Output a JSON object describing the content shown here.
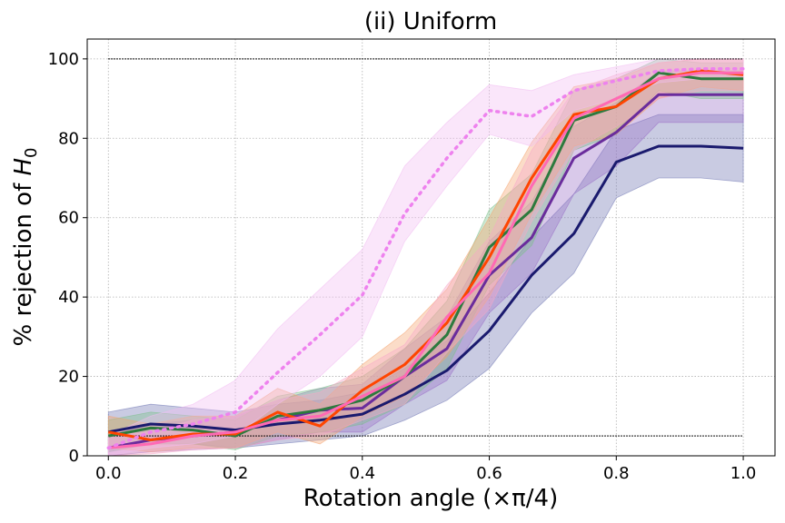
{
  "chart_data": {
    "type": "line",
    "title": "(ii) Uniform",
    "xlabel": "Rotation angle (×π/4)",
    "ylabel_prefix": "% rejection of ",
    "ylabel_symbol": "H",
    "ylabel_subscript": "0",
    "xlim": [
      -0.0333,
      1.05
    ],
    "ylim": [
      0,
      105
    ],
    "xticks": [
      0.0,
      0.2,
      0.4,
      0.6,
      0.8,
      1.0
    ],
    "xtick_labels": [
      "0.0",
      "0.2",
      "0.4",
      "0.6",
      "0.8",
      "1.0"
    ],
    "yticks": [
      0,
      20,
      40,
      60,
      80,
      100
    ],
    "ytick_labels": [
      "0",
      "20",
      "40",
      "60",
      "80",
      "100"
    ],
    "grid": true,
    "reference_lines": [
      {
        "y": 100,
        "style": "dotted",
        "color": "#000000"
      },
      {
        "y": 5,
        "style": "dotted",
        "color": "#000000"
      }
    ],
    "x": [
      0.0,
      0.0667,
      0.1333,
      0.2,
      0.2667,
      0.3333,
      0.4,
      0.4667,
      0.5333,
      0.6,
      0.6667,
      0.7333,
      0.8,
      0.8667,
      0.9333,
      1.0
    ],
    "series": [
      {
        "color": "#1a1a6e",
        "band_color": "#7076b4",
        "style": "solid",
        "values": [
          6,
          8,
          7.5,
          6.5,
          8,
          9,
          10.5,
          15.5,
          21.5,
          31.5,
          45.5,
          56,
          74,
          78,
          78,
          77.5
        ],
        "lower": [
          1,
          3,
          3,
          2,
          3,
          4,
          5,
          9,
          14,
          22,
          36,
          46,
          65,
          70,
          70,
          69
        ],
        "upper": [
          11,
          13,
          12,
          11,
          13,
          14,
          16,
          22,
          29,
          41,
          55,
          66,
          82,
          86,
          86,
          86
        ]
      },
      {
        "color": "#6a2c9c",
        "band_color": "#9b70c8",
        "style": "solid",
        "values": [
          2,
          4,
          5,
          6,
          9,
          11.5,
          12,
          20,
          27,
          45.5,
          55,
          75,
          81.5,
          91,
          91,
          91
        ],
        "lower": [
          0,
          1,
          1.5,
          2,
          4,
          6,
          6,
          13,
          19,
          36,
          46,
          66,
          73,
          84,
          84,
          84
        ],
        "upper": [
          5,
          8,
          9,
          10,
          14,
          17,
          18,
          27,
          35,
          54,
          64,
          83,
          89,
          97,
          97,
          97
        ]
      },
      {
        "color": "#2d7a3e",
        "band_color": "#7bbf8a",
        "style": "solid",
        "values": [
          5,
          7,
          6.5,
          5,
          10,
          11.5,
          14,
          20,
          30.5,
          52.5,
          62,
          84.5,
          88,
          96.5,
          95,
          95
        ],
        "lower": [
          1,
          3,
          3,
          1.5,
          5,
          6,
          8,
          13,
          22,
          43,
          53,
          77,
          81,
          92,
          90,
          90
        ],
        "upper": [
          9,
          11,
          10,
          9,
          15,
          17,
          20,
          27,
          39,
          62,
          71,
          92,
          95,
          100,
          99,
          99
        ]
      },
      {
        "color": "#ff4500",
        "band_color": "#f5a46e",
        "style": "solid",
        "values": [
          6,
          4,
          5.5,
          5.5,
          11,
          7.5,
          16.5,
          23,
          33.5,
          50,
          70,
          86,
          88,
          95,
          97,
          96
        ],
        "lower": [
          2,
          1,
          2,
          2,
          6,
          3,
          10,
          15,
          25,
          40,
          61,
          78,
          81,
          90,
          93,
          92
        ],
        "upper": [
          10,
          8,
          10,
          10,
          17,
          13,
          23,
          31,
          42,
          60,
          79,
          93,
          95,
          99,
          100,
          100
        ]
      },
      {
        "color": "#ff69b4",
        "band_color": "#f7a8c8",
        "style": "solid",
        "values": [
          2,
          3,
          5,
          6,
          9,
          10,
          15,
          20,
          35,
          46,
          68,
          85,
          90,
          95,
          96.5,
          96.5
        ],
        "lower": [
          0,
          0.5,
          1.5,
          2,
          4,
          5,
          9,
          13,
          26,
          37,
          59,
          77,
          83,
          90,
          92,
          92
        ],
        "upper": [
          5,
          6,
          9,
          10,
          14,
          16,
          22,
          28,
          43,
          55,
          77,
          92,
          96,
          99,
          100,
          100
        ]
      },
      {
        "color": "#ee82ee",
        "band_color": "#f2bdf2",
        "style": "dotted",
        "values": [
          2,
          6,
          8,
          11,
          21,
          30.5,
          40.5,
          61,
          75,
          87,
          85.5,
          92,
          94.5,
          97,
          97.5,
          97.5
        ],
        "lower": [
          0,
          2,
          3,
          5,
          13,
          20,
          30,
          54,
          68,
          81,
          78,
          87,
          90,
          94,
          95,
          95
        ],
        "upper": [
          5,
          10,
          13,
          19,
          32,
          42,
          52,
          73,
          84,
          93.5,
          92,
          96,
          98,
          100,
          100,
          100
        ]
      }
    ]
  }
}
